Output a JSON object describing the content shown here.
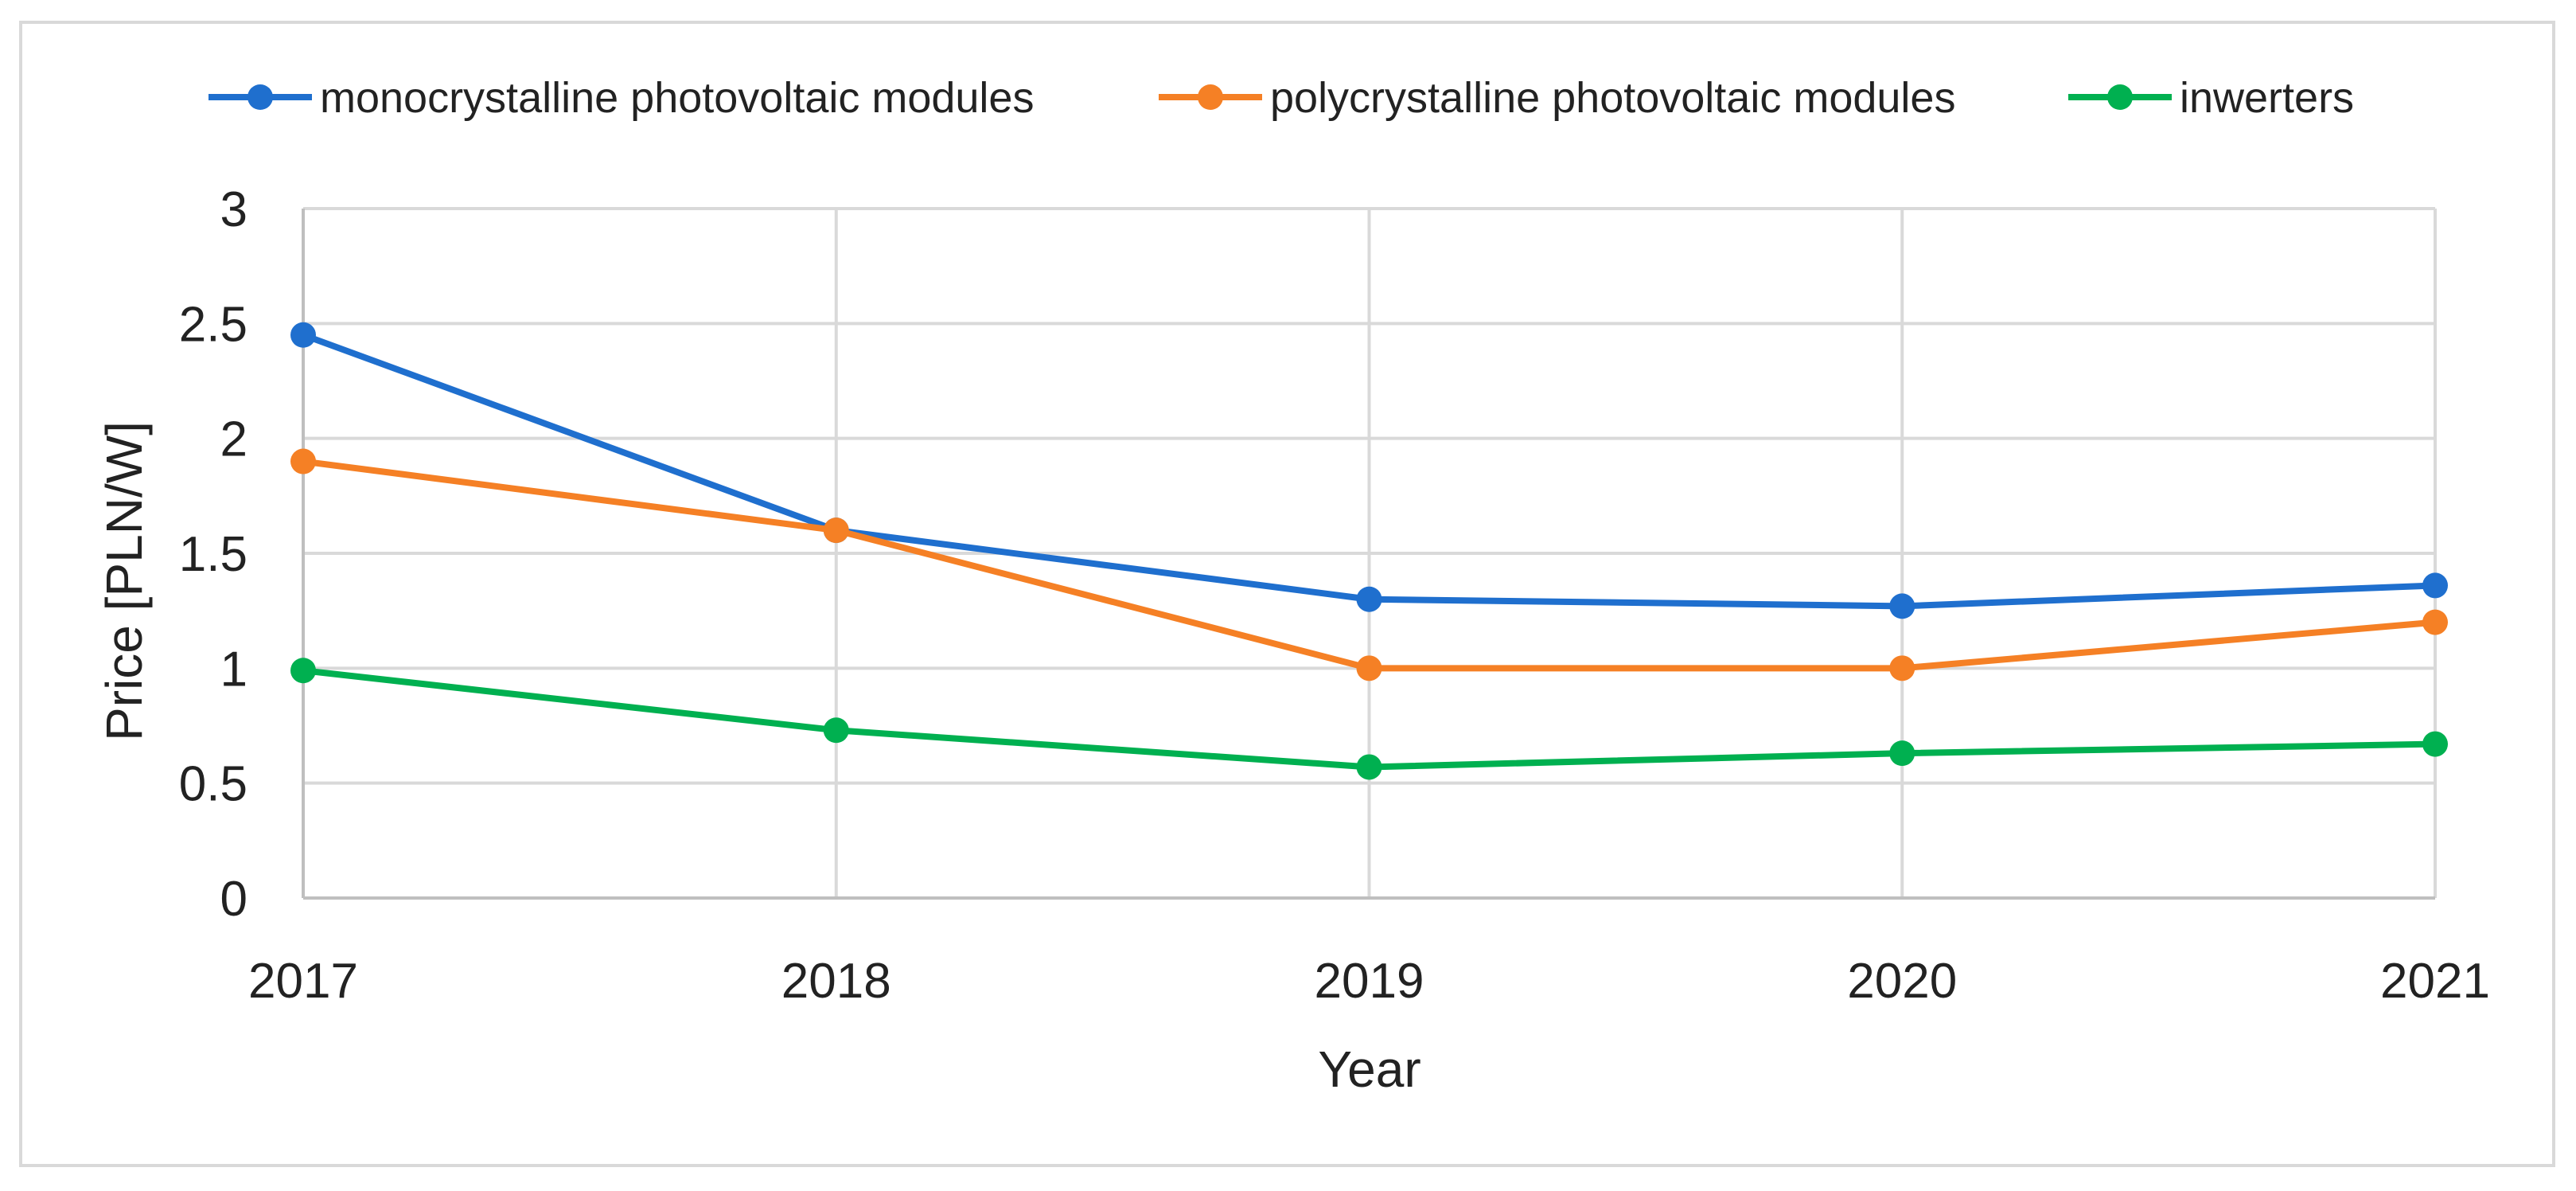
{
  "chart_data": {
    "type": "line",
    "title": "",
    "xlabel": "Year",
    "ylabel": "Price  [PLN/W]",
    "categories": [
      "2017",
      "2018",
      "2019",
      "2020",
      "2021"
    ],
    "ylim": [
      0,
      3
    ],
    "y_ticks": [
      "0",
      "0.5",
      "1",
      "1.5",
      "2",
      "2.5",
      "3"
    ],
    "y_tick_values": [
      0,
      0.5,
      1,
      1.5,
      2,
      2.5,
      3
    ],
    "grid": true,
    "legend_position": "top",
    "series": [
      {
        "name": "monocrystalline photovoltaic modules",
        "color": "#1f6fce",
        "values": [
          2.45,
          1.6,
          1.3,
          1.27,
          1.36
        ]
      },
      {
        "name": "polycrystalline photovoltaic modules",
        "color": "#f58025",
        "values": [
          1.9,
          1.6,
          1.0,
          1.0,
          1.2
        ]
      },
      {
        "name": "inwerters",
        "color": "#00b050",
        "values": [
          0.99,
          0.73,
          0.57,
          0.63,
          0.67
        ]
      }
    ]
  }
}
